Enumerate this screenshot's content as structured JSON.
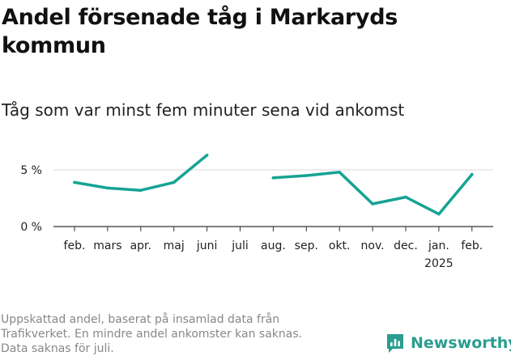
{
  "header": {
    "title": "Andel försenade tåg i Markaryds kommun",
    "subtitle": "Tåg som var minst fem minuter sena vid ankomst"
  },
  "footnote": {
    "lines": [
      "Uppskattad andel, baserat på insamlad data från",
      "Trafikverket. En mindre andel ankomster kan saknas.",
      "Data saknas för juli."
    ]
  },
  "brand": {
    "name": "Newsworthy",
    "icon": "bar-chart-speech-icon",
    "color": "#2a9d8f"
  },
  "chart_data": {
    "type": "line",
    "title": "Andel försenade tåg i Markaryds kommun",
    "subtitle": "Tåg som var minst fem minuter sena vid ankomst",
    "xlabel": "",
    "ylabel": "",
    "categories": [
      "feb.",
      "mars",
      "apr.",
      "maj",
      "juni",
      "juli",
      "aug.",
      "sep.",
      "okt.",
      "nov.",
      "dec.",
      "jan.",
      "feb."
    ],
    "year_label": {
      "category_index": 11,
      "text": "2025"
    },
    "series": [
      {
        "color": "#16a394",
        "values": [
          3.9,
          3.4,
          3.2,
          3.9,
          6.3,
          null,
          4.3,
          4.5,
          4.8,
          2.0,
          2.6,
          1.1,
          4.6
        ]
      }
    ],
    "yticks": [
      {
        "value": 0,
        "label": "0 %"
      },
      {
        "value": 5,
        "label": "5 %"
      }
    ],
    "ylim": [
      0,
      7
    ],
    "grid": true,
    "legend": "none"
  }
}
